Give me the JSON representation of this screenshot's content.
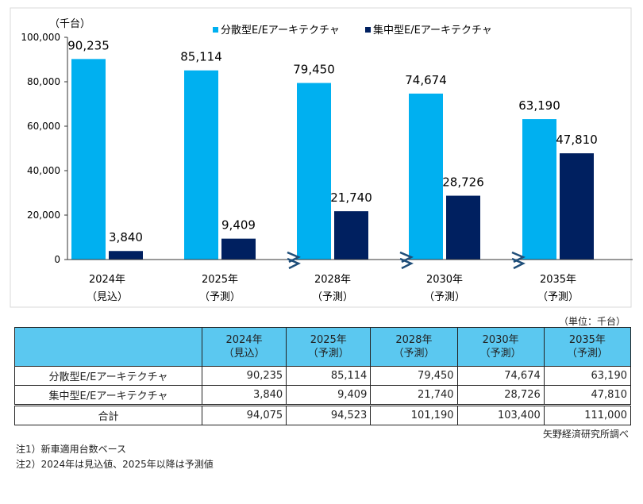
{
  "chart_data": {
    "type": "bar",
    "ylabel": "（千台）",
    "ylim": [
      0,
      100000
    ],
    "yticks": [
      "0",
      "20,000",
      "40,000",
      "60,000",
      "80,000",
      "100,000"
    ],
    "categories": [
      [
        "2024年",
        "（見込）"
      ],
      [
        "2025年",
        "（予測）"
      ],
      [
        "2028年",
        "（予測）"
      ],
      [
        "2030年",
        "（予測）"
      ],
      [
        "2035年",
        "（予測）"
      ]
    ],
    "series": [
      {
        "name": "分散型E/Eアーキテクチャ",
        "color": "#00b0f0",
        "values": [
          90235,
          85114,
          79450,
          74674,
          63190
        ],
        "labels": [
          "90,235",
          "85,114",
          "79,450",
          "74,674",
          "63,190"
        ]
      },
      {
        "name": "集中型E/Eアーキテクチャ",
        "color": "#002060",
        "values": [
          3840,
          9409,
          21740,
          28726,
          47810
        ],
        "labels": [
          "3,840",
          "9,409",
          "21,740",
          "28,726",
          "47,810"
        ]
      }
    ],
    "legend": "top",
    "axis_break_marks": true
  },
  "table": {
    "unit": "（単位：千台）",
    "headers": [
      [
        "2024年",
        "（見込）"
      ],
      [
        "2025年",
        "（予測）"
      ],
      [
        "2028年",
        "（予測）"
      ],
      [
        "2030年",
        "（予測）"
      ],
      [
        "2035年",
        "（予測）"
      ]
    ],
    "rows": [
      {
        "label": "分散型E/Eアーキテクチャ",
        "values": [
          "90,235",
          "85,114",
          "79,450",
          "74,674",
          "63,190"
        ]
      },
      {
        "label": "集中型E/Eアーキテクチャ",
        "values": [
          "3,840",
          "9,409",
          "21,740",
          "28,726",
          "47,810"
        ]
      },
      {
        "label": "合計",
        "values": [
          "94,075",
          "94,523",
          "101,190",
          "103,400",
          "111,000"
        ]
      }
    ]
  },
  "source": "矢野経済研究所調べ",
  "notes": [
    "注1）新車適用台数ベース",
    "注2）2024年は見込値、2025年以降は予測値"
  ]
}
